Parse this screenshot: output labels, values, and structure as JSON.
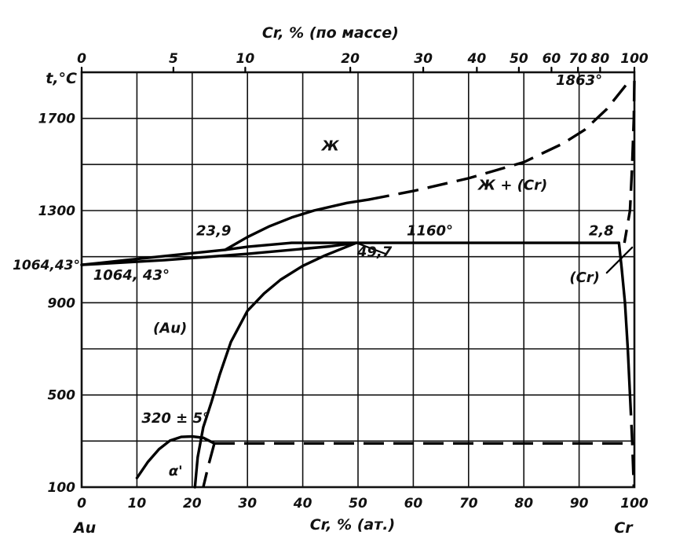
{
  "chart_data": {
    "type": "line",
    "title": "",
    "top_axis": {
      "label": "Cr, % (по массе)",
      "ticks": [
        {
          "label": "0",
          "x": 0
        },
        {
          "label": "5",
          "x": 16.6
        },
        {
          "label": "10",
          "x": 29.6
        },
        {
          "label": "20",
          "x": 48.6
        },
        {
          "label": "30",
          "x": 61.8
        },
        {
          "label": "40",
          "x": 71.5
        },
        {
          "label": "50",
          "x": 79.1
        },
        {
          "label": "60",
          "x": 85.0
        },
        {
          "label": "70",
          "x": 89.8
        },
        {
          "label": "80",
          "x": 93.8
        },
        {
          "label": "100",
          "x": 100
        }
      ]
    },
    "xlabel": "Cr, % (ат.)",
    "ylabel": "t,°C",
    "xlim": [
      0,
      100
    ],
    "ylim": [
      100,
      1900
    ],
    "xticks": [
      "0",
      "10",
      "20",
      "30",
      "40",
      "50",
      "60",
      "70",
      "80",
      "90",
      "100"
    ],
    "yticks": [
      "100",
      "500",
      "900",
      "1300",
      "1700"
    ],
    "y_extra_label": {
      "text": "1064,43°",
      "y": 1064.43
    },
    "endpoints": {
      "left": "Au",
      "right": "Cr"
    },
    "grid": true,
    "series": [
      {
        "style": "solid",
        "points": [
          [
            0,
            1064.43
          ],
          [
            8,
            1085
          ],
          [
            16,
            1105
          ],
          [
            22,
            1120
          ],
          [
            26,
            1130
          ],
          [
            30,
            1143
          ],
          [
            38,
            1160
          ],
          [
            47,
            1160
          ],
          [
            97.2,
            1160
          ]
        ]
      },
      {
        "style": "solid",
        "points": [
          [
            26,
            1130
          ],
          [
            30,
            1185
          ],
          [
            34,
            1232
          ],
          [
            38,
            1270
          ],
          [
            42,
            1300
          ],
          [
            48,
            1333
          ],
          [
            52,
            1348
          ]
        ]
      },
      {
        "style": "dashed",
        "points": [
          [
            52,
            1348
          ],
          [
            60,
            1385
          ],
          [
            70,
            1440
          ],
          [
            80,
            1510
          ],
          [
            87,
            1590
          ],
          [
            91,
            1650
          ],
          [
            95,
            1740
          ],
          [
            98.5,
            1845
          ],
          [
            100,
            1863
          ]
        ]
      },
      {
        "style": "solid",
        "points": [
          [
            0,
            1064.43
          ],
          [
            15,
            1085
          ],
          [
            30,
            1112
          ],
          [
            45,
            1145
          ],
          [
            49.7,
            1160
          ]
        ]
      },
      {
        "style": "solid",
        "points": [
          [
            49.7,
            1160
          ],
          [
            44,
            1105
          ],
          [
            40,
            1060
          ],
          [
            36,
            1000
          ],
          [
            33,
            940
          ],
          [
            30,
            865
          ],
          [
            27,
            730
          ],
          [
            25,
            590
          ],
          [
            23.5,
            470
          ],
          [
            22,
            360
          ],
          [
            21,
            230
          ],
          [
            20.5,
            100
          ]
        ]
      },
      {
        "style": "solid",
        "points": [
          [
            10,
            140
          ],
          [
            12,
            210
          ],
          [
            14,
            265
          ],
          [
            16,
            302
          ],
          [
            18,
            318
          ],
          [
            20,
            320
          ],
          [
            22,
            314
          ],
          [
            24,
            290
          ]
        ]
      },
      {
        "style": "dashed",
        "points": [
          [
            24,
            290
          ],
          [
            100,
            290
          ]
        ]
      },
      {
        "style": "dashed",
        "points": [
          [
            24,
            290
          ],
          [
            23,
            200
          ],
          [
            22,
            100
          ]
        ]
      },
      {
        "style": "solid",
        "points": [
          [
            97.2,
            1160
          ],
          [
            97.7,
            1050
          ],
          [
            98.3,
            900
          ],
          [
            98.8,
            700
          ],
          [
            99.2,
            500
          ]
        ]
      },
      {
        "style": "dashed",
        "points": [
          [
            99.2,
            500
          ],
          [
            99.6,
            300
          ],
          [
            99.9,
            100
          ]
        ]
      },
      {
        "style": "dashed",
        "points": [
          [
            100,
            1863
          ],
          [
            99.9,
            1700
          ],
          [
            99.6,
            1500
          ],
          [
            99.2,
            1300
          ],
          [
            98.2,
            1160
          ]
        ]
      }
    ],
    "annotations": [
      {
        "text": "Ж",
        "x": 45,
        "y": 1560
      },
      {
        "text": "Ж + (Cr)",
        "x": 78,
        "y": 1390
      },
      {
        "text": "1863°",
        "x": 90,
        "y": 1845
      },
      {
        "text": "23,9",
        "x": 23.9,
        "y": 1192
      },
      {
        "text": "1160°",
        "x": 63,
        "y": 1192
      },
      {
        "text": "2,8",
        "x": 94,
        "y": 1192
      },
      {
        "text": "49,7",
        "x": 53,
        "y": 1100
      },
      {
        "text": "1064, 43°",
        "x": 9,
        "y": 1000
      },
      {
        "text": "(Cr)",
        "x": 91,
        "y": 990
      },
      {
        "text": "(Au)",
        "x": 16,
        "y": 770
      },
      {
        "text": "320 ± 5°",
        "x": 17,
        "y": 380
      },
      {
        "text": "α'",
        "x": 17,
        "y": 150
      }
    ]
  }
}
